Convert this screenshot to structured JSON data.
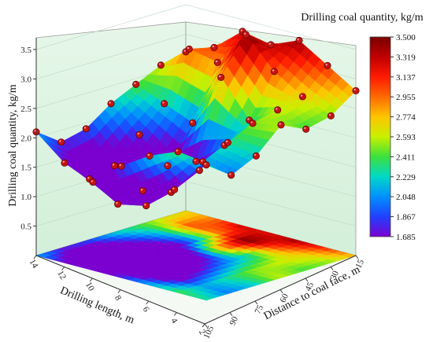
{
  "chart_data": {
    "type": "surface3d",
    "title": "",
    "zlabel": "Drilling coal quantity, kg/m",
    "xlabel": "Drilling length, m",
    "ylabel": "Distance to coal face, m",
    "x_ticks": [
      "14",
      "12",
      "10",
      "8",
      "6",
      "4",
      "2"
    ],
    "y_ticks": [
      "15",
      "30",
      "45",
      "60",
      "75",
      "90",
      "105"
    ],
    "z_ticks": [
      "0.5",
      "1.0",
      "1.5",
      "2.0",
      "2.5",
      "3.0",
      "3.5"
    ],
    "zlim": [
      0,
      3.7
    ],
    "colorbar": {
      "title": "Drilling coal quantity, kg/m",
      "min": 1.685,
      "max": 3.5,
      "labels": [
        "3.500",
        "3.319",
        "3.137",
        "2.955",
        "2.774",
        "2.593",
        "2.411",
        "2.229",
        "2.048",
        "1.867",
        "1.685"
      ],
      "colors": [
        "#7a0000",
        "#c00000",
        "#ff1a00",
        "#ff6a00",
        "#ffc400",
        "#c8f000",
        "#3ce03c",
        "#00d8c8",
        "#0090ff",
        "#2040ff",
        "#7a00d0"
      ]
    },
    "x": [
      14,
      12,
      10,
      8,
      6,
      4,
      2
    ],
    "y": [
      15,
      30,
      45,
      60,
      75,
      90,
      105
    ],
    "z": [
      [
        2.7,
        2.9,
        3.3,
        3.2,
        3.4,
        3.1,
        2.8
      ],
      [
        2.6,
        3.0,
        2.9,
        3.5,
        3.0,
        2.7,
        2.5
      ],
      [
        2.4,
        2.2,
        2.0,
        2.9,
        2.3,
        2.6,
        2.4
      ],
      [
        2.2,
        1.8,
        1.4,
        1.6,
        2.0,
        2.5,
        2.6
      ],
      [
        1.9,
        1.4,
        1.1,
        1.2,
        1.7,
        2.3,
        2.2
      ],
      [
        1.8,
        1.3,
        1.0,
        1.1,
        1.5,
        2.1,
        2.0
      ],
      [
        2.1,
        1.7,
        1.5,
        1.9,
        2.2,
        2.4,
        2.3
      ]
    ]
  }
}
